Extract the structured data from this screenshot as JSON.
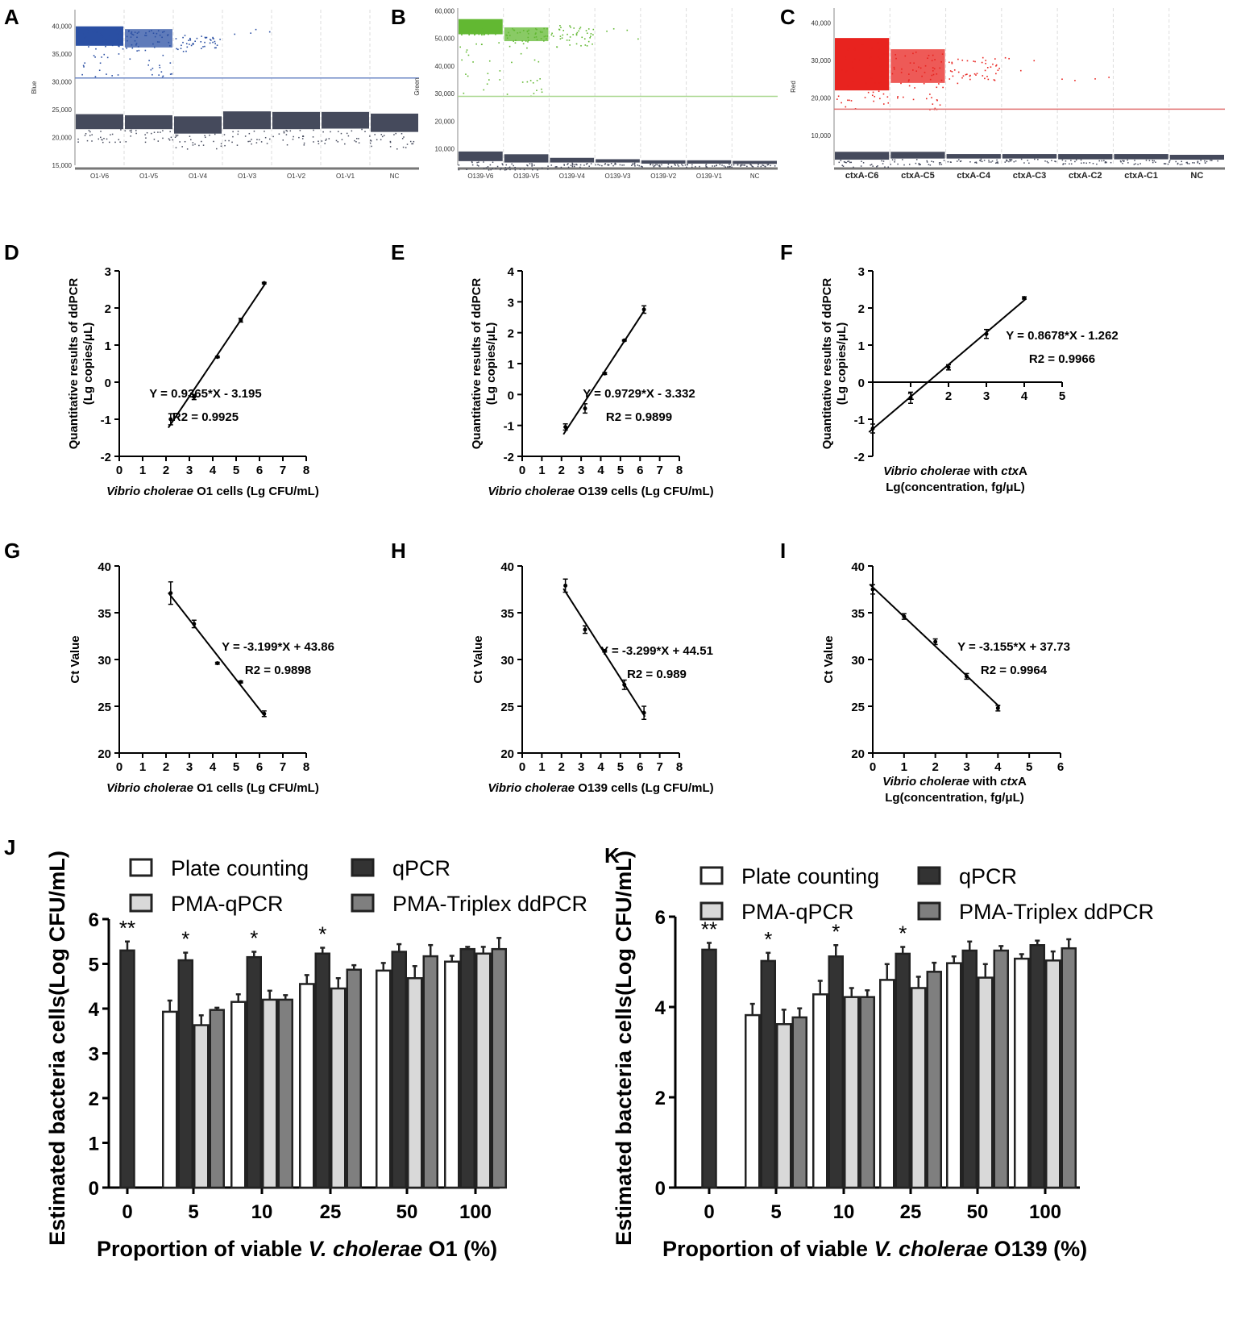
{
  "chart_data": [
    {
      "id": "A",
      "type": "scatter",
      "panel_label": "A",
      "ylabel": "Blue",
      "ylim": [
        15000,
        43000
      ],
      "yticks": [
        15000,
        20000,
        25000,
        30000,
        35000,
        40000
      ],
      "ytick_labels": [
        "15,000",
        "20,000",
        "25,000",
        "30,000",
        "35,000",
        "40,000"
      ],
      "categories": [
        "O1-V6",
        "O1-V5",
        "O1-V4",
        "O1-V3",
        "O1-V2",
        "O1-V1",
        "NC"
      ],
      "threshold": 30700,
      "positive_color": "#2a4fa3",
      "negative_color": "#454a5c",
      "threshold_color": "#6a86c4",
      "positive": [
        [
          36500,
          40000,
          1
        ],
        [
          36200,
          39500,
          1
        ],
        [
          35500,
          38500,
          0
        ],
        [
          37000,
          40000,
          -1
        ],
        null,
        null,
        null
      ],
      "negative": [
        [
          21500,
          24200
        ],
        [
          21500,
          24000
        ],
        [
          20700,
          23800
        ],
        [
          21500,
          24700
        ],
        [
          21500,
          24600
        ],
        [
          21600,
          24600
        ],
        [
          21000,
          24300
        ]
      ]
    },
    {
      "id": "B",
      "type": "scatter",
      "panel_label": "B",
      "ylabel": "Green",
      "ylim": [
        4000,
        61000
      ],
      "yticks": [
        10000,
        20000,
        30000,
        40000,
        50000,
        60000
      ],
      "ytick_labels": [
        "10,000",
        "20,000",
        "30,000",
        "40,000",
        "50,000",
        "60,000"
      ],
      "categories": [
        "O139-V6",
        "O139-V5",
        "O139-V4",
        "O139-V3",
        "O139-V2",
        "O139-V1",
        "NC"
      ],
      "threshold": 29000,
      "positive_color": "#62b832",
      "negative_color": "#454a5c",
      "threshold_color": "#a9d78f",
      "positive": [
        [
          51500,
          57000,
          1
        ],
        [
          49000,
          54000,
          1
        ],
        [
          47000,
          55000,
          0
        ],
        [
          50000,
          54000,
          -1
        ],
        null,
        null,
        null
      ],
      "negative": [
        [
          5500,
          9000
        ],
        [
          5000,
          8000
        ],
        [
          5000,
          6700
        ],
        [
          5000,
          6200
        ],
        [
          4600,
          5800
        ],
        [
          4600,
          5800
        ],
        [
          4500,
          5600
        ]
      ]
    },
    {
      "id": "C",
      "type": "scatter",
      "panel_label": "C",
      "ylabel": "Red",
      "ylim": [
        2000,
        44000
      ],
      "yticks": [
        10000,
        20000,
        30000,
        40000
      ],
      "ytick_labels": [
        "10,000",
        "20,000",
        "30,000",
        "40,000"
      ],
      "categories": [
        "ctxA-C6",
        "ctxA-C5",
        "ctxA-C4",
        "ctxA-C3",
        "ctxA-C2",
        "ctxA-C1",
        "NC"
      ],
      "threshold": 17000,
      "positive_color": "#e8231f",
      "negative_color": "#454a5c",
      "threshold_color": "#e07070",
      "positive": [
        [
          22000,
          36000,
          1
        ],
        [
          24000,
          33000,
          1
        ],
        [
          24000,
          31000,
          0
        ],
        [
          27000,
          31000,
          -1
        ],
        [
          24000,
          26000,
          -1
        ],
        null,
        null
      ],
      "negative": [
        [
          3500,
          5600
        ],
        [
          3800,
          5600
        ],
        [
          3800,
          5000
        ],
        [
          3800,
          5000
        ],
        [
          3600,
          5000
        ],
        [
          3600,
          5000
        ],
        [
          3500,
          4800
        ]
      ]
    },
    {
      "id": "D",
      "type": "line",
      "panel_label": "D",
      "xlim": [
        0,
        8
      ],
      "ylim": [
        -2,
        3
      ],
      "xticks": [
        0,
        1,
        2,
        3,
        4,
        5,
        6,
        7,
        8
      ],
      "yticks": [
        -2,
        -1,
        0,
        1,
        2,
        3
      ],
      "ylabel": [
        "Quantitative results of ddPCR",
        "(Lg copies/μL)"
      ],
      "xlabel_italic": "Vibrio cholerae",
      "xlabel_rest": " O1 cells (Lg CFU/mL)",
      "x": [
        2.2,
        3.2,
        4.2,
        5.2,
        6.2
      ],
      "y": [
        -1.0,
        -0.4,
        0.68,
        1.67,
        2.67
      ],
      "err": [
        0.15,
        0.07,
        0.02,
        0.05,
        0.02
      ],
      "slope": 0.9365,
      "intercept": -3.195,
      "equation": "Y = 0.9365*X - 3.195",
      "r2": "R2 = 0.9925"
    },
    {
      "id": "E",
      "type": "line",
      "panel_label": "E",
      "xlim": [
        0,
        8
      ],
      "ylim": [
        -2,
        4
      ],
      "xticks": [
        0,
        1,
        2,
        3,
        4,
        5,
        6,
        7,
        8
      ],
      "yticks": [
        -2,
        -1,
        0,
        1,
        2,
        3,
        4
      ],
      "ylabel": [
        "Quantitative results of ddPCR",
        "(Lg copies/μL)"
      ],
      "xlabel_italic": "Vibrio cholerae",
      "xlabel_rest": " O139 cells (Lg CFU/mL)",
      "x": [
        2.2,
        3.2,
        4.2,
        5.2,
        6.2
      ],
      "y": [
        -1.05,
        -0.45,
        0.68,
        1.75,
        2.75
      ],
      "err": [
        0.1,
        0.15,
        0.03,
        0.02,
        0.12
      ],
      "slope": 0.9729,
      "intercept": -3.332,
      "equation": "Y = 0.9729*X - 3.332",
      "r2": "R2 = 0.9899"
    },
    {
      "id": "F",
      "type": "line",
      "panel_label": "F",
      "xlim": [
        0,
        5
      ],
      "ylim": [
        -2,
        3
      ],
      "xticks": [
        1,
        2,
        3,
        4,
        5
      ],
      "yticks": [
        -2,
        -1,
        0,
        1,
        2,
        3
      ],
      "xaxis_at_zero": true,
      "ylabel": [
        "Quantitative results of ddPCR",
        "(Lg copies/μL)"
      ],
      "xlabel_italic": "Vibrio cholerae",
      "xlabel_mid": " with ",
      "xlabel_italic2": "ctx",
      "xlabel_rest": "A",
      "xlabel_line2": "Lg(concentration, fg/μL)",
      "x": [
        0,
        1,
        2,
        3,
        4
      ],
      "y": [
        -1.25,
        -0.42,
        0.4,
        1.3,
        2.27
      ],
      "err": [
        0.12,
        0.15,
        0.07,
        0.12,
        0.03
      ],
      "slope": 0.8678,
      "intercept": -1.262,
      "equation": "Y = 0.8678*X - 1.262",
      "r2": "R2 = 0.9966"
    },
    {
      "id": "G",
      "type": "line",
      "panel_label": "G",
      "xlim": [
        0,
        8
      ],
      "ylim": [
        20,
        40
      ],
      "xticks": [
        0,
        1,
        2,
        3,
        4,
        5,
        6,
        7,
        8
      ],
      "yticks": [
        20,
        25,
        30,
        35,
        40
      ],
      "ylabel": [
        "Ct Value"
      ],
      "xlabel_italic": "Vibrio cholerae",
      "xlabel_rest": " O1 cells (Lg CFU/mL)",
      "x": [
        2.2,
        3.2,
        4.2,
        5.2,
        6.2
      ],
      "y": [
        37.1,
        33.8,
        29.6,
        27.6,
        24.2
      ],
      "err": [
        1.2,
        0.4,
        0.1,
        0.1,
        0.3
      ],
      "slope": -3.199,
      "intercept": 43.86,
      "equation": "Y = -3.199*X + 43.86",
      "r2": "R2 = 0.9898"
    },
    {
      "id": "H",
      "type": "line",
      "panel_label": "H",
      "xlim": [
        0,
        8
      ],
      "ylim": [
        20,
        40
      ],
      "xticks": [
        0,
        1,
        2,
        3,
        4,
        5,
        6,
        7,
        8
      ],
      "yticks": [
        20,
        25,
        30,
        35,
        40
      ],
      "ylabel": [
        "Ct Value"
      ],
      "xlabel_italic": "Vibrio cholerae",
      "xlabel_rest": " O139 cells (Lg CFU/mL)",
      "x": [
        2.2,
        3.2,
        4.2,
        5.2,
        6.2
      ],
      "y": [
        37.9,
        33.2,
        30.9,
        27.3,
        24.3
      ],
      "err": [
        0.7,
        0.4,
        0.1,
        0.5,
        0.7
      ],
      "slope": -3.299,
      "intercept": 44.51,
      "equation": "Y = -3.299*X + 44.51",
      "r2": "R2 = 0.989"
    },
    {
      "id": "I",
      "type": "line",
      "panel_label": "I",
      "xlim": [
        0,
        6
      ],
      "ylim": [
        20,
        40
      ],
      "xticks": [
        0,
        1,
        2,
        3,
        4,
        5,
        6
      ],
      "yticks": [
        20,
        25,
        30,
        35,
        40
      ],
      "ylabel": [
        "Ct Value"
      ],
      "xlabel_italic": "Vibrio cholerae",
      "xlabel_mid": " with ",
      "xlabel_italic2": "ctx",
      "xlabel_rest": "A",
      "xlabel_line2": "Lg(concentration, fg/μL)",
      "x": [
        0,
        1,
        2,
        3,
        4
      ],
      "y": [
        37.5,
        34.6,
        31.9,
        28.2,
        24.8
      ],
      "err": [
        0.5,
        0.3,
        0.3,
        0.3,
        0.3
      ],
      "slope": -3.155,
      "intercept": 37.73,
      "equation": "Y = -3.155*X + 37.73",
      "r2": "R2 = 0.9964"
    },
    {
      "id": "J",
      "type": "bar",
      "panel_label": "J",
      "ylim": [
        0,
        6
      ],
      "yticks": [
        0,
        1,
        2,
        3,
        4,
        5,
        6
      ],
      "ylabel": "Estimated  bacteria cells(Log CFU/mL)",
      "xlabel_pre": "Proportion of viable ",
      "xlabel_italic": "V. cholerae",
      "xlabel_rest": " O1 (%)",
      "categories": [
        "0",
        "5",
        "10",
        "25",
        "50",
        "100"
      ],
      "significance": [
        "**",
        "*",
        "*",
        "*",
        "",
        ""
      ],
      "series": [
        {
          "name": "Plate counting",
          "color": "#ffffff",
          "values": [
            null,
            3.93,
            4.15,
            4.55,
            4.85,
            5.05
          ],
          "err": [
            null,
            0.25,
            0.17,
            0.2,
            0.17,
            0.13
          ]
        },
        {
          "name": "qPCR",
          "color": "#333333",
          "values": [
            5.3,
            5.08,
            5.15,
            5.23,
            5.27,
            5.33
          ],
          "err": [
            0.2,
            0.17,
            0.12,
            0.13,
            0.17,
            0.05
          ]
        },
        {
          "name": "PMA-qPCR",
          "color": "#d9d9d9",
          "values": [
            null,
            3.63,
            4.2,
            4.45,
            4.68,
            5.23
          ],
          "err": [
            null,
            0.22,
            0.2,
            0.23,
            0.27,
            0.15
          ]
        },
        {
          "name": "PMA-Triplex ddPCR",
          "color": "#7f7f7f",
          "values": [
            null,
            3.97,
            4.2,
            4.87,
            5.17,
            5.33
          ],
          "err": [
            null,
            0.05,
            0.1,
            0.1,
            0.25,
            0.25
          ]
        }
      ]
    },
    {
      "id": "K",
      "type": "bar",
      "panel_label": "K",
      "ylim": [
        0,
        6
      ],
      "yticks": [
        0,
        2,
        4,
        6
      ],
      "ylabel": "Estimated  bacteria cells(Log CFU/mL)",
      "xlabel_pre": "Proportion of viable ",
      "xlabel_italic": "V. cholerae",
      "xlabel_rest": " O139 (%)",
      "categories": [
        "0",
        "5",
        "10",
        "25",
        "50",
        "100"
      ],
      "significance": [
        "**",
        "*",
        "*",
        "*",
        "",
        ""
      ],
      "series": [
        {
          "name": "Plate counting",
          "color": "#ffffff",
          "values": [
            null,
            3.82,
            4.28,
            4.6,
            4.97,
            5.07
          ],
          "err": [
            null,
            0.25,
            0.3,
            0.35,
            0.15,
            0.1
          ]
        },
        {
          "name": "qPCR",
          "color": "#333333",
          "values": [
            5.27,
            5.02,
            5.12,
            5.18,
            5.25,
            5.37
          ],
          "err": [
            0.15,
            0.18,
            0.25,
            0.15,
            0.2,
            0.1
          ]
        },
        {
          "name": "PMA-qPCR",
          "color": "#d9d9d9",
          "values": [
            null,
            3.62,
            4.22,
            4.42,
            4.65,
            5.03
          ],
          "err": [
            null,
            0.32,
            0.2,
            0.25,
            0.3,
            0.2
          ]
        },
        {
          "name": "PMA-Triplex ddPCR",
          "color": "#7f7f7f",
          "values": [
            null,
            3.77,
            4.22,
            4.78,
            5.25,
            5.3
          ],
          "err": [
            null,
            0.2,
            0.15,
            0.2,
            0.1,
            0.2
          ]
        }
      ]
    }
  ]
}
